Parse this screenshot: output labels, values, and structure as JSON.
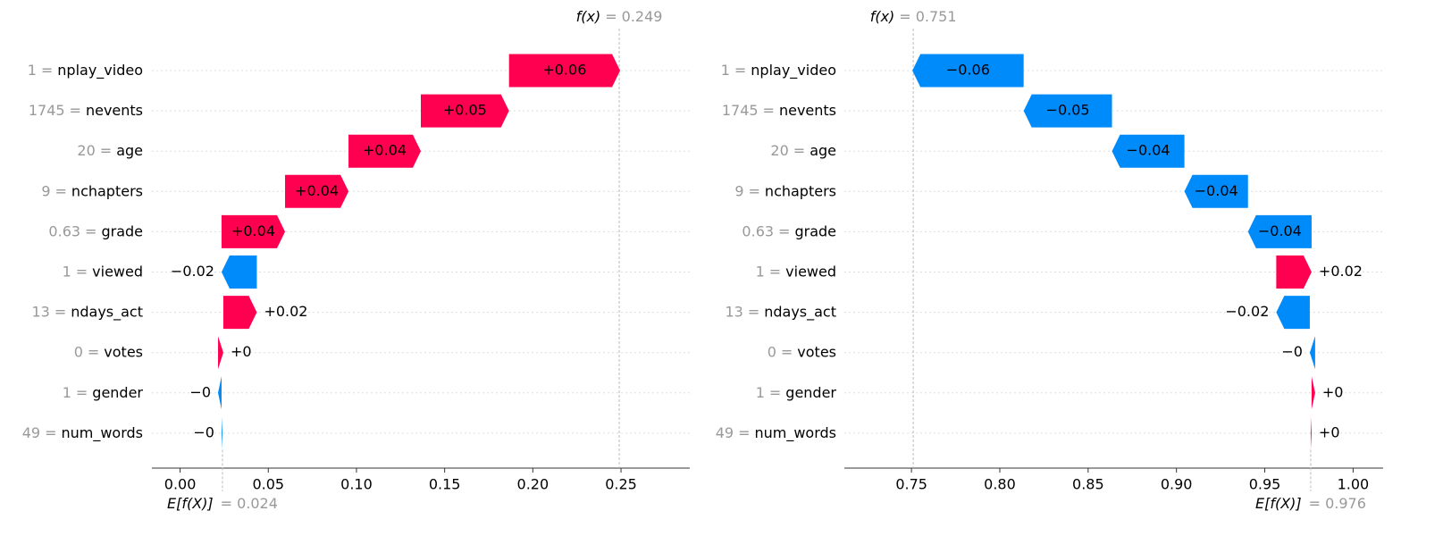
{
  "chart_data": [
    {
      "type": "waterfall",
      "features": [
        "nplay_video",
        "nevents",
        "age",
        "nchapters",
        "grade",
        "viewed",
        "ndays_act",
        "votes",
        "gender",
        "num_words"
      ],
      "feature_values": [
        1,
        1745,
        20,
        9,
        0.63,
        1,
        13,
        0,
        1,
        49
      ],
      "separator": "=",
      "values": [
        0.063,
        0.05,
        0.041,
        0.036,
        0.036,
        -0.02,
        0.019,
        0.003,
        -0.002,
        -0.0005
      ],
      "value_labels": [
        "+0.06",
        "+0.05",
        "+0.04",
        "+0.04",
        "+0.04",
        "−0.02",
        "+0.02",
        "+0",
        "−0",
        "−0"
      ],
      "base_label": "E[f(X)]",
      "base_value": 0.024,
      "fx_label": "f(x)",
      "fx_value": 0.249,
      "colors": {
        "positive": "#ff0051",
        "negative": "#008bfb"
      },
      "xlim": [
        -0.016,
        0.289
      ],
      "xticks": [
        {
          "value": 0,
          "label": "0.00"
        },
        0.05,
        {
          "value": 0.1,
          "label": "0.10"
        },
        0.15,
        {
          "value": 0.2,
          "label": "0.20"
        },
        0.25
      ]
    },
    {
      "type": "waterfall",
      "features": [
        "nplay_video",
        "nevents",
        "age",
        "nchapters",
        "grade",
        "viewed",
        "ndays_act",
        "votes",
        "gender",
        "num_words"
      ],
      "feature_values": [
        1,
        1745,
        20,
        9,
        0.63,
        1,
        13,
        0,
        1,
        49
      ],
      "separator": "=",
      "values": [
        -0.063,
        -0.05,
        -0.041,
        -0.036,
        -0.036,
        0.02,
        -0.019,
        -0.003,
        0.002,
        0.0005
      ],
      "value_labels": [
        "−0.06",
        "−0.05",
        "−0.04",
        "−0.04",
        "−0.04",
        "+0.02",
        "−0.02",
        "−0",
        "+0",
        "+0"
      ],
      "base_label": "E[f(X)]",
      "base_value": 0.976,
      "fx_label": "f(x)",
      "fx_value": 0.751,
      "colors": {
        "positive": "#ff0051",
        "negative": "#008bfb"
      },
      "xlim": [
        0.712,
        1.017
      ],
      "xticks": [
        0.75,
        {
          "value": 0.8,
          "label": "0.80"
        },
        0.85,
        {
          "value": 0.9,
          "label": "0.90"
        },
        0.95,
        {
          "value": 1,
          "label": "1.00"
        }
      ]
    }
  ]
}
